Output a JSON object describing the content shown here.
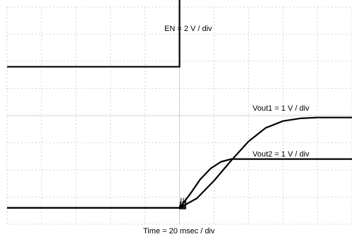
{
  "chart_data": {
    "type": "line",
    "title": "",
    "xlabel": "Time = 20 msec / div",
    "xlim": [
      -50,
      50
    ],
    "x_divisions": 10,
    "y_divisions": 8,
    "grid": true,
    "colors": {
      "trace": "#000000",
      "grid": "#c8c8c8",
      "background": "#ffffff"
    },
    "series": [
      {
        "name": "EN = 2 V / div",
        "x": [
          -50,
          0,
          0,
          50
        ],
        "y": [
          0,
          0,
          4.3,
          4.3
        ]
      },
      {
        "name": "Vout1 = 1 V / div",
        "x": [
          -50,
          0,
          5,
          10,
          15,
          20,
          25,
          30,
          35,
          40,
          45,
          50
        ],
        "y": [
          0,
          0,
          0.35,
          1.0,
          1.75,
          2.45,
          2.95,
          3.2,
          3.3,
          3.33,
          3.33,
          3.33
        ]
      },
      {
        "name": "Vout2 = 1 V / div",
        "x": [
          -50,
          0,
          3,
          6,
          9,
          12,
          15,
          20,
          30,
          40,
          50
        ],
        "y": [
          0,
          0,
          0.5,
          1.05,
          1.45,
          1.7,
          1.8,
          1.8,
          1.8,
          1.8,
          1.8
        ]
      }
    ]
  }
}
